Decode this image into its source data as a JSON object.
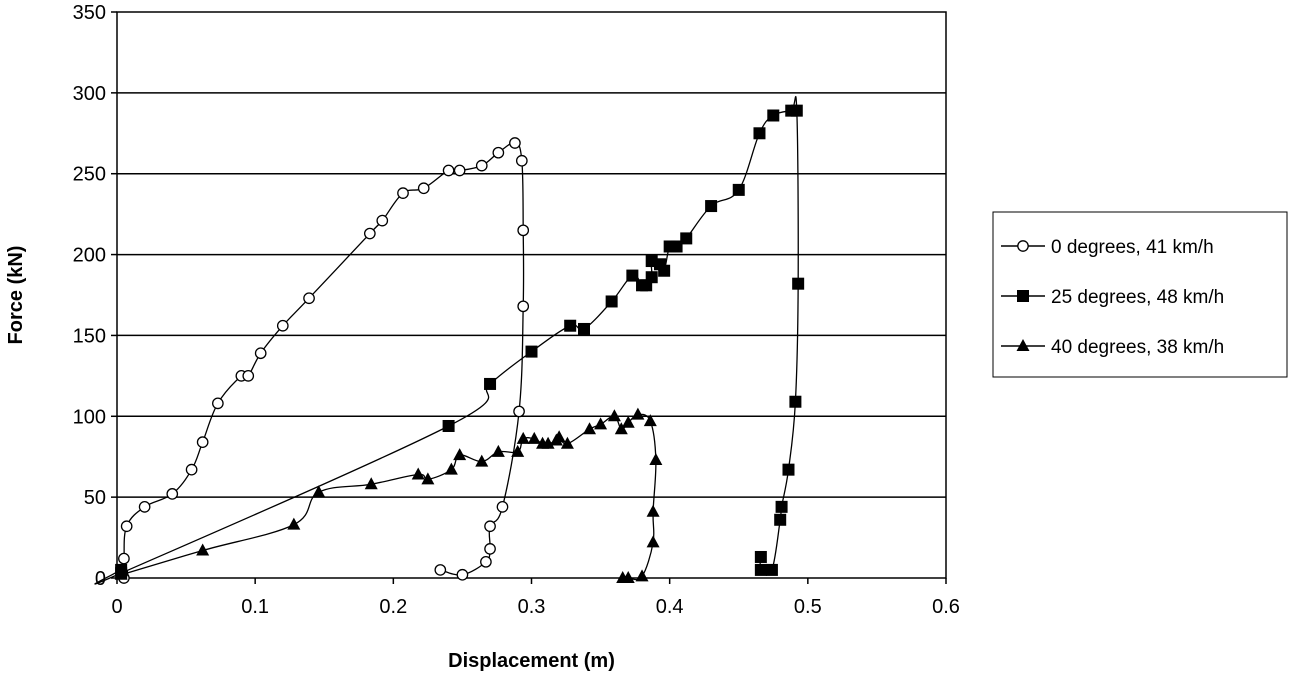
{
  "chart_data": {
    "type": "line",
    "title": "",
    "xlabel": "Displacement (m)",
    "ylabel": "Force  (kN)",
    "xlim": [
      0,
      0.6
    ],
    "ylim": [
      0,
      350
    ],
    "x_ticks": [
      "0",
      "0.1",
      "0.2",
      "0.3",
      "0.4",
      "0.5",
      "0.6"
    ],
    "y_ticks": [
      "0",
      "50",
      "100",
      "150",
      "200",
      "250",
      "300",
      "350"
    ],
    "grid": "horizontal",
    "legend_position": "right",
    "series": [
      {
        "name": "0 degrees, 41 km/h",
        "marker": "open-circle",
        "points": [
          [
            0.005,
            0
          ],
          [
            0.004,
            3
          ],
          [
            0.005,
            12
          ],
          [
            0.007,
            32
          ],
          [
            0.02,
            44
          ],
          [
            0.04,
            52
          ],
          [
            0.054,
            67
          ],
          [
            0.062,
            84
          ],
          [
            0.073,
            108
          ],
          [
            0.09,
            125
          ],
          [
            0.095,
            125
          ],
          [
            0.104,
            139
          ],
          [
            0.12,
            156
          ],
          [
            0.139,
            173
          ],
          [
            0.183,
            213
          ],
          [
            0.192,
            221
          ],
          [
            0.207,
            238
          ],
          [
            0.222,
            241
          ],
          [
            0.24,
            252
          ],
          [
            0.248,
            252
          ],
          [
            0.264,
            255
          ],
          [
            0.276,
            263
          ],
          [
            0.288,
            269
          ],
          [
            0.293,
            258
          ],
          [
            0.294,
            215
          ],
          [
            0.294,
            168
          ],
          [
            0.291,
            103
          ],
          [
            0.279,
            44
          ],
          [
            0.27,
            32
          ],
          [
            0.27,
            18
          ],
          [
            0.267,
            10
          ],
          [
            0.25,
            2
          ],
          [
            0.234,
            5
          ]
        ]
      },
      {
        "name": "25 degrees, 48 km/h",
        "marker": "filled-square",
        "points": [
          [
            0.003,
            5
          ],
          [
            0.003,
            3
          ],
          [
            0.24,
            94
          ],
          [
            0.27,
            120
          ],
          [
            0.3,
            140
          ],
          [
            0.328,
            156
          ],
          [
            0.338,
            154
          ],
          [
            0.358,
            171
          ],
          [
            0.373,
            187
          ],
          [
            0.38,
            181
          ],
          [
            0.383,
            181
          ],
          [
            0.387,
            186
          ],
          [
            0.387,
            196
          ],
          [
            0.393,
            194
          ],
          [
            0.396,
            190
          ],
          [
            0.4,
            205
          ],
          [
            0.405,
            205
          ],
          [
            0.412,
            210
          ],
          [
            0.43,
            230
          ],
          [
            0.45,
            240
          ],
          [
            0.465,
            275
          ],
          [
            0.475,
            286
          ],
          [
            0.488,
            289
          ],
          [
            0.492,
            289
          ],
          [
            0.493,
            182
          ],
          [
            0.491,
            109
          ],
          [
            0.486,
            67
          ],
          [
            0.481,
            44
          ],
          [
            0.48,
            36
          ],
          [
            0.474,
            5
          ],
          [
            0.466,
            5
          ],
          [
            0.466,
            13
          ]
        ]
      },
      {
        "name": "40 degrees, 38 km/h",
        "marker": "filled-triangle",
        "points": [
          [
            0.003,
            2
          ],
          [
            0.062,
            17
          ],
          [
            0.128,
            33
          ],
          [
            0.146,
            53
          ],
          [
            0.184,
            58
          ],
          [
            0.218,
            64
          ],
          [
            0.225,
            61
          ],
          [
            0.242,
            67
          ],
          [
            0.248,
            76
          ],
          [
            0.264,
            72
          ],
          [
            0.276,
            78
          ],
          [
            0.29,
            78
          ],
          [
            0.294,
            86
          ],
          [
            0.302,
            86
          ],
          [
            0.308,
            83
          ],
          [
            0.312,
            83
          ],
          [
            0.318,
            85
          ],
          [
            0.32,
            87
          ],
          [
            0.326,
            83
          ],
          [
            0.342,
            92
          ],
          [
            0.35,
            95
          ],
          [
            0.36,
            100
          ],
          [
            0.365,
            92
          ],
          [
            0.37,
            96
          ],
          [
            0.377,
            101
          ],
          [
            0.386,
            97
          ],
          [
            0.39,
            73
          ],
          [
            0.388,
            41
          ],
          [
            0.388,
            22
          ],
          [
            0.38,
            1
          ],
          [
            0.37,
            0
          ],
          [
            0.366,
            0
          ]
        ]
      }
    ]
  }
}
